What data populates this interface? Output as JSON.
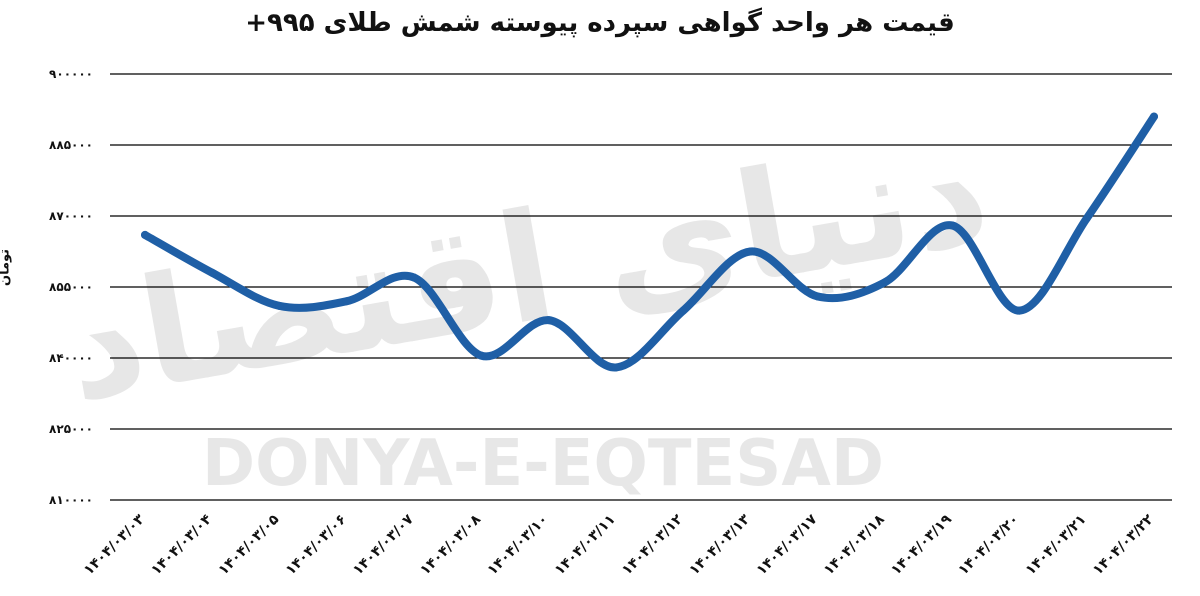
{
  "chart_data": {
    "type": "line",
    "title": "قیمت هر واحد گواهی سپرده پیوسته شمش طلای ۹۹۵+",
    "ylabel": "تومان",
    "xlabel": "",
    "ylim": [
      810000,
      900000
    ],
    "yticks": [
      {
        "value": 810000,
        "label": "۸۱۰۰۰۰"
      },
      {
        "value": 825000,
        "label": "۸۲۵۰۰۰"
      },
      {
        "value": 840000,
        "label": "۸۴۰۰۰۰"
      },
      {
        "value": 855000,
        "label": "۸۵۵۰۰۰"
      },
      {
        "value": 870000,
        "label": "۸۷۰۰۰۰"
      },
      {
        "value": 885000,
        "label": "۸۸۵۰۰۰"
      },
      {
        "value": 900000,
        "label": "۹۰۰۰۰۰"
      }
    ],
    "categories": [
      "۱۴۰۴/۰۳/۰۳",
      "۱۴۰۴/۰۳/۰۴",
      "۱۴۰۴/۰۳/۰۵",
      "۱۴۰۴/۰۳/۰۶",
      "۱۴۰۴/۰۳/۰۷",
      "۱۴۰۴/۰۳/۰۸",
      "۱۴۰۴/۰۳/۱۰",
      "۱۴۰۴/۰۳/۱۱",
      "۱۴۰۴/۰۳/۱۲",
      "۱۴۰۴/۰۳/۱۳",
      "۱۴۰۴/۰۳/۱۷",
      "۱۴۰۴/۰۳/۱۸",
      "۱۴۰۴/۰۳/۱۹",
      "۱۴۰۴/۰۳/۲۰",
      "۱۴۰۴/۰۳/۲۱",
      "۱۴۰۴/۰۳/۲۲"
    ],
    "series": [
      {
        "values": [
          866000,
          858000,
          851000,
          852000,
          857000,
          840500,
          848000,
          838000,
          850000,
          862500,
          853000,
          856000,
          868000,
          850000,
          869500,
          891000
        ]
      }
    ],
    "grid": true,
    "line_color": "#1f5fa6"
  },
  "watermark": {
    "text_fa": "دنیای اقتصاد",
    "text_en": "DONYA-E-EQTESAD"
  }
}
